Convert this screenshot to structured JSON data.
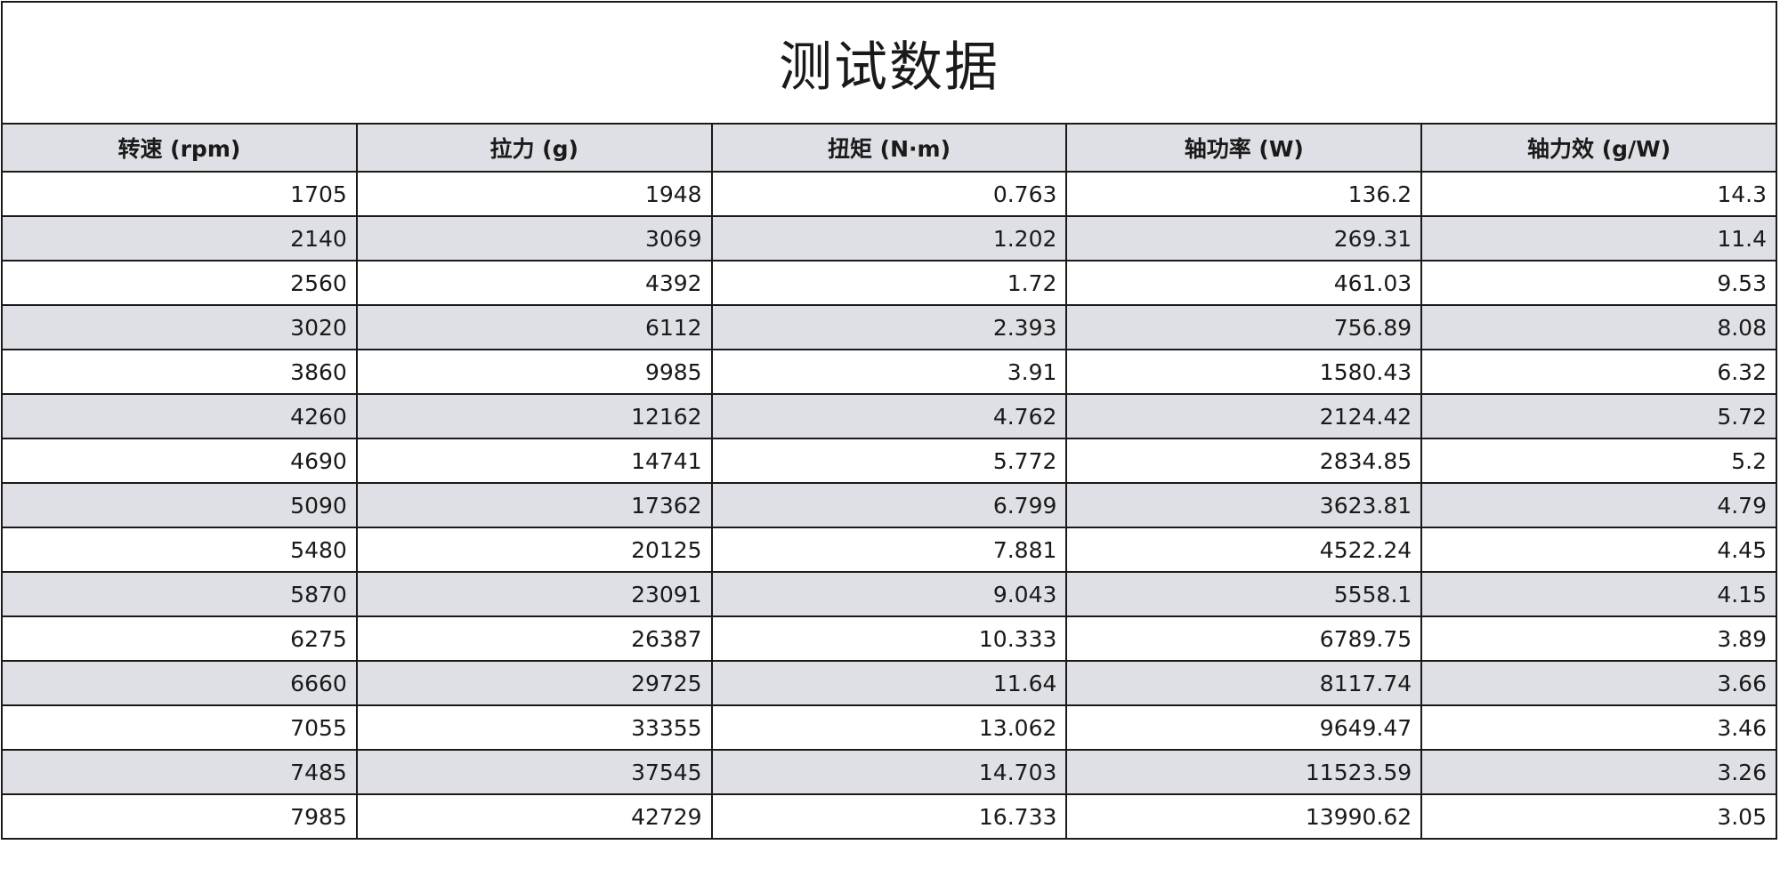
{
  "title": "测试数据",
  "columns": [
    "转速 (rpm)",
    "拉力 (g)",
    "扭矩 (N·m)",
    "轴功率 (W)",
    "轴力效 (g/W)"
  ],
  "rows": [
    [
      "1705",
      "1948",
      "0.763",
      "136.2",
      "14.3"
    ],
    [
      "2140",
      "3069",
      "1.202",
      "269.31",
      "11.4"
    ],
    [
      "2560",
      "4392",
      "1.72",
      "461.03",
      "9.53"
    ],
    [
      "3020",
      "6112",
      "2.393",
      "756.89",
      "8.08"
    ],
    [
      "3860",
      "9985",
      "3.91",
      "1580.43",
      "6.32"
    ],
    [
      "4260",
      "12162",
      "4.762",
      "2124.42",
      "5.72"
    ],
    [
      "4690",
      "14741",
      "5.772",
      "2834.85",
      "5.2"
    ],
    [
      "5090",
      "17362",
      "6.799",
      "3623.81",
      "4.79"
    ],
    [
      "5480",
      "20125",
      "7.881",
      "4522.24",
      "4.45"
    ],
    [
      "5870",
      "23091",
      "9.043",
      "5558.1",
      "4.15"
    ],
    [
      "6275",
      "26387",
      "10.333",
      "6789.75",
      "3.89"
    ],
    [
      "6660",
      "29725",
      "11.64",
      "8117.74",
      "3.66"
    ],
    [
      "7055",
      "33355",
      "13.062",
      "9649.47",
      "3.46"
    ],
    [
      "7485",
      "37545",
      "14.703",
      "11523.59",
      "3.26"
    ],
    [
      "7985",
      "42729",
      "16.733",
      "13990.62",
      "3.05"
    ]
  ],
  "colors": {
    "header_bg": "#dfe0e5",
    "alt_row_bg": "#dfe0e5",
    "border": "#1a1a1a",
    "text": "#1a1a1a"
  }
}
